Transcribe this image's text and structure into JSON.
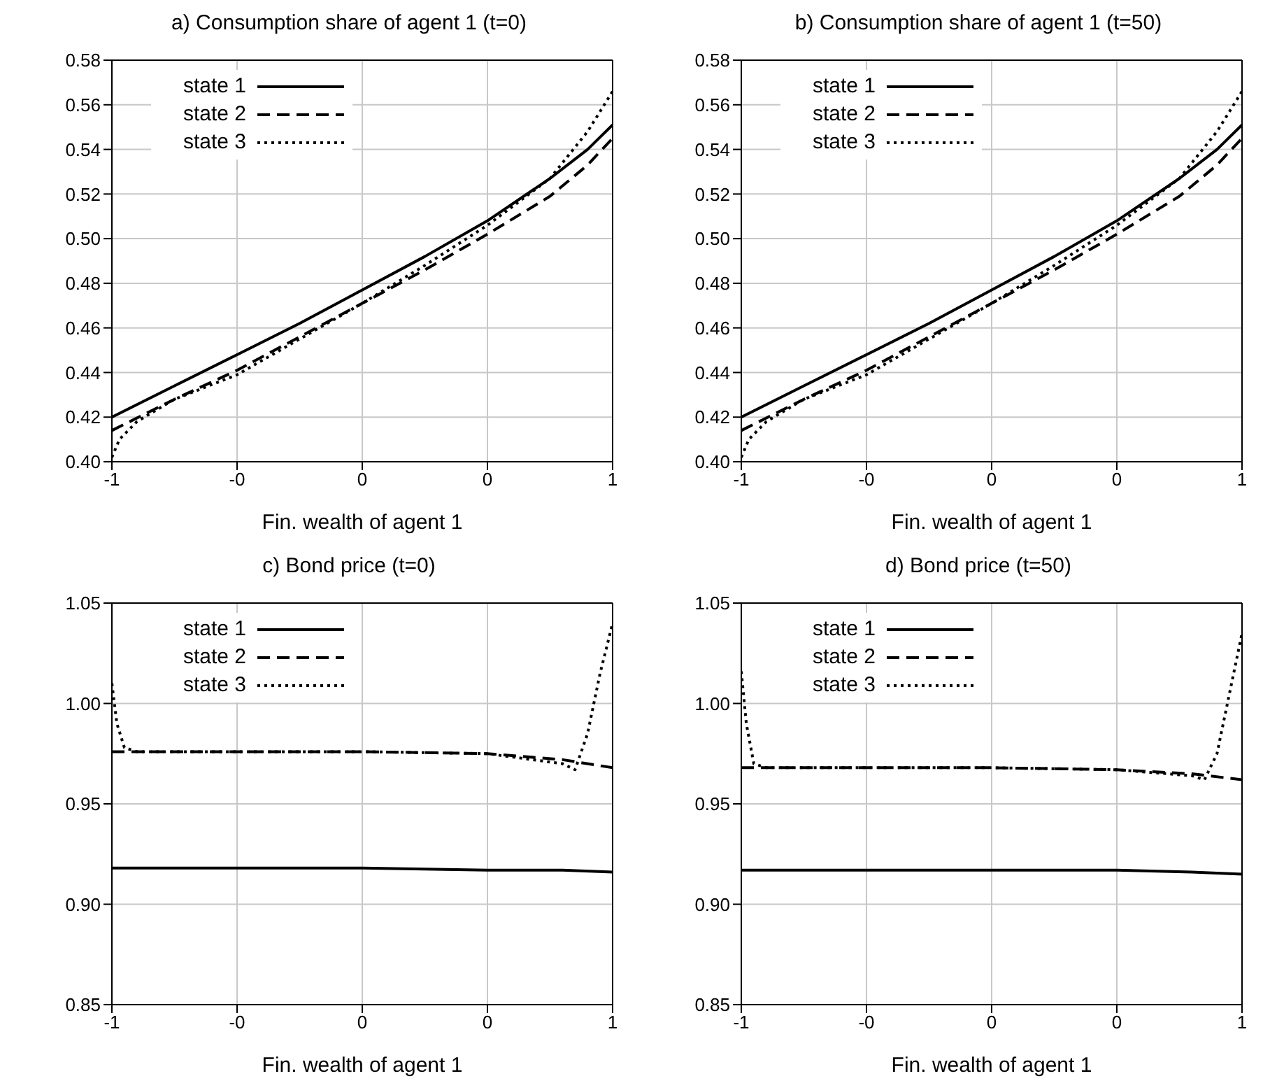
{
  "chart_data": [
    {
      "type": "line",
      "title": "a) Consumption share of agent 1 (t=0)",
      "xlabel": "Fin. wealth of agent 1",
      "xlim": [
        -1,
        1
      ],
      "xticks": [
        {
          "value": -1,
          "label": "-1"
        },
        {
          "value": -0.5,
          "label": "-0"
        },
        {
          "value": 0,
          "label": "0"
        },
        {
          "value": 0.5,
          "label": "0"
        },
        {
          "value": 1,
          "label": "1"
        }
      ],
      "ylim": [
        0.4,
        0.58
      ],
      "yticks": [
        {
          "value": 0.4,
          "label": "0.40"
        },
        {
          "value": 0.42,
          "label": "0.42"
        },
        {
          "value": 0.44,
          "label": "0.44"
        },
        {
          "value": 0.46,
          "label": "0.46"
        },
        {
          "value": 0.48,
          "label": "0.48"
        },
        {
          "value": 0.5,
          "label": "0.50"
        },
        {
          "value": 0.52,
          "label": "0.52"
        },
        {
          "value": 0.54,
          "label": "0.54"
        },
        {
          "value": 0.56,
          "label": "0.56"
        },
        {
          "value": 0.58,
          "label": "0.58"
        }
      ],
      "grid": true,
      "legend": "top left",
      "series": [
        {
          "name": "state 1",
          "color": "#000000",
          "line_style": "solid",
          "x": [
            -1,
            -0.75,
            -0.5,
            -0.25,
            0,
            0.25,
            0.5,
            0.75,
            0.9,
            1
          ],
          "values": [
            0.42,
            0.434,
            0.448,
            0.462,
            0.477,
            0.492,
            0.508,
            0.527,
            0.54,
            0.551
          ]
        },
        {
          "name": "state 2",
          "color": "#000000",
          "line_style": "dashed",
          "x": [
            -1,
            -0.75,
            -0.5,
            -0.25,
            0,
            0.25,
            0.5,
            0.75,
            0.9,
            1
          ],
          "values": [
            0.414,
            0.428,
            0.441,
            0.456,
            0.471,
            0.486,
            0.502,
            0.519,
            0.533,
            0.545
          ]
        },
        {
          "name": "state 3",
          "color": "#000000",
          "line_style": "dotted",
          "x": [
            -1,
            -0.97,
            -0.9,
            -0.75,
            -0.5,
            -0.25,
            0,
            0.25,
            0.5,
            0.75,
            0.9,
            1
          ],
          "values": [
            0.402,
            0.41,
            0.418,
            0.428,
            0.439,
            0.455,
            0.471,
            0.488,
            0.506,
            0.527,
            0.548,
            0.566
          ]
        }
      ]
    },
    {
      "type": "line",
      "title": "b) Consumption share of agent 1 (t=50)",
      "xlabel": "Fin. wealth of agent 1",
      "xlim": [
        -1,
        1
      ],
      "xticks": [
        {
          "value": -1,
          "label": "-1"
        },
        {
          "value": -0.5,
          "label": "-0"
        },
        {
          "value": 0,
          "label": "0"
        },
        {
          "value": 0.5,
          "label": "0"
        },
        {
          "value": 1,
          "label": "1"
        }
      ],
      "ylim": [
        0.4,
        0.58
      ],
      "yticks": [
        {
          "value": 0.4,
          "label": "0.40"
        },
        {
          "value": 0.42,
          "label": "0.42"
        },
        {
          "value": 0.44,
          "label": "0.44"
        },
        {
          "value": 0.46,
          "label": "0.46"
        },
        {
          "value": 0.48,
          "label": "0.48"
        },
        {
          "value": 0.5,
          "label": "0.50"
        },
        {
          "value": 0.52,
          "label": "0.52"
        },
        {
          "value": 0.54,
          "label": "0.54"
        },
        {
          "value": 0.56,
          "label": "0.56"
        },
        {
          "value": 0.58,
          "label": "0.58"
        }
      ],
      "grid": true,
      "legend": "top left",
      "series": [
        {
          "name": "state 1",
          "color": "#000000",
          "line_style": "solid",
          "x": [
            -1,
            -0.75,
            -0.5,
            -0.25,
            0,
            0.25,
            0.5,
            0.75,
            0.9,
            1
          ],
          "values": [
            0.42,
            0.434,
            0.448,
            0.462,
            0.477,
            0.492,
            0.508,
            0.527,
            0.54,
            0.551
          ]
        },
        {
          "name": "state 2",
          "color": "#000000",
          "line_style": "dashed",
          "x": [
            -1,
            -0.75,
            -0.5,
            -0.25,
            0,
            0.25,
            0.5,
            0.75,
            0.9,
            1
          ],
          "values": [
            0.414,
            0.428,
            0.441,
            0.456,
            0.471,
            0.486,
            0.502,
            0.519,
            0.533,
            0.545
          ]
        },
        {
          "name": "state 3",
          "color": "#000000",
          "line_style": "dotted",
          "x": [
            -1,
            -0.97,
            -0.9,
            -0.75,
            -0.5,
            -0.25,
            0,
            0.25,
            0.5,
            0.75,
            0.9,
            1
          ],
          "values": [
            0.402,
            0.41,
            0.418,
            0.428,
            0.439,
            0.455,
            0.471,
            0.488,
            0.506,
            0.527,
            0.548,
            0.566
          ]
        }
      ]
    },
    {
      "type": "line",
      "title": "c) Bond price (t=0)",
      "xlabel": "Fin. wealth of agent 1",
      "xlim": [
        -1,
        1
      ],
      "xticks": [
        {
          "value": -1,
          "label": "-1"
        },
        {
          "value": -0.5,
          "label": "-0"
        },
        {
          "value": 0,
          "label": "0"
        },
        {
          "value": 0.5,
          "label": "0"
        },
        {
          "value": 1,
          "label": "1"
        }
      ],
      "ylim": [
        0.85,
        1.05
      ],
      "yticks": [
        {
          "value": 0.85,
          "label": "0.85"
        },
        {
          "value": 0.9,
          "label": "0.90"
        },
        {
          "value": 0.95,
          "label": "0.95"
        },
        {
          "value": 1,
          "label": "1.00"
        },
        {
          "value": 1.05,
          "label": "1.05"
        }
      ],
      "grid": true,
      "legend": "top left",
      "series": [
        {
          "name": "state 1",
          "color": "#000000",
          "line_style": "solid",
          "x": [
            -1,
            -0.5,
            0,
            0.5,
            0.8,
            1
          ],
          "values": [
            0.918,
            0.918,
            0.918,
            0.917,
            0.917,
            0.916
          ]
        },
        {
          "name": "state 2",
          "color": "#000000",
          "line_style": "dashed",
          "x": [
            -1,
            -0.5,
            0,
            0.5,
            0.8,
            1
          ],
          "values": [
            0.976,
            0.976,
            0.976,
            0.975,
            0.972,
            0.968
          ]
        },
        {
          "name": "state 3",
          "color": "#000000",
          "line_style": "dotted",
          "x": [
            -1,
            -0.98,
            -0.95,
            -0.9,
            -0.5,
            0,
            0.5,
            0.8,
            0.85,
            0.9,
            0.95,
            1
          ],
          "values": [
            1.01,
            0.99,
            0.978,
            0.976,
            0.976,
            0.976,
            0.975,
            0.97,
            0.967,
            0.985,
            1.015,
            1.04
          ]
        }
      ]
    },
    {
      "type": "line",
      "title": "d) Bond price (t=50)",
      "xlabel": "Fin. wealth of agent 1",
      "xlim": [
        -1,
        1
      ],
      "xticks": [
        {
          "value": -1,
          "label": "-1"
        },
        {
          "value": -0.5,
          "label": "-0"
        },
        {
          "value": 0,
          "label": "0"
        },
        {
          "value": 0.5,
          "label": "0"
        },
        {
          "value": 1,
          "label": "1"
        }
      ],
      "ylim": [
        0.85,
        1.05
      ],
      "yticks": [
        {
          "value": 0.85,
          "label": "0.85"
        },
        {
          "value": 0.9,
          "label": "0.90"
        },
        {
          "value": 0.95,
          "label": "0.95"
        },
        {
          "value": 1,
          "label": "1.00"
        },
        {
          "value": 1.05,
          "label": "1.05"
        }
      ],
      "grid": true,
      "legend": "top left",
      "series": [
        {
          "name": "state 1",
          "color": "#000000",
          "line_style": "solid",
          "x": [
            -1,
            -0.5,
            0,
            0.5,
            0.8,
            1
          ],
          "values": [
            0.917,
            0.917,
            0.917,
            0.917,
            0.916,
            0.915
          ]
        },
        {
          "name": "state 2",
          "color": "#000000",
          "line_style": "dashed",
          "x": [
            -1,
            -0.5,
            0,
            0.5,
            0.8,
            1
          ],
          "values": [
            0.968,
            0.968,
            0.968,
            0.967,
            0.965,
            0.962
          ]
        },
        {
          "name": "state 3",
          "color": "#000000",
          "line_style": "dotted",
          "x": [
            -1,
            -0.98,
            -0.95,
            -0.9,
            -0.5,
            0,
            0.5,
            0.8,
            0.85,
            0.9,
            0.95,
            1
          ],
          "values": [
            1.016,
            0.99,
            0.97,
            0.968,
            0.968,
            0.968,
            0.967,
            0.964,
            0.962,
            0.975,
            1.005,
            1.035
          ]
        }
      ]
    }
  ]
}
